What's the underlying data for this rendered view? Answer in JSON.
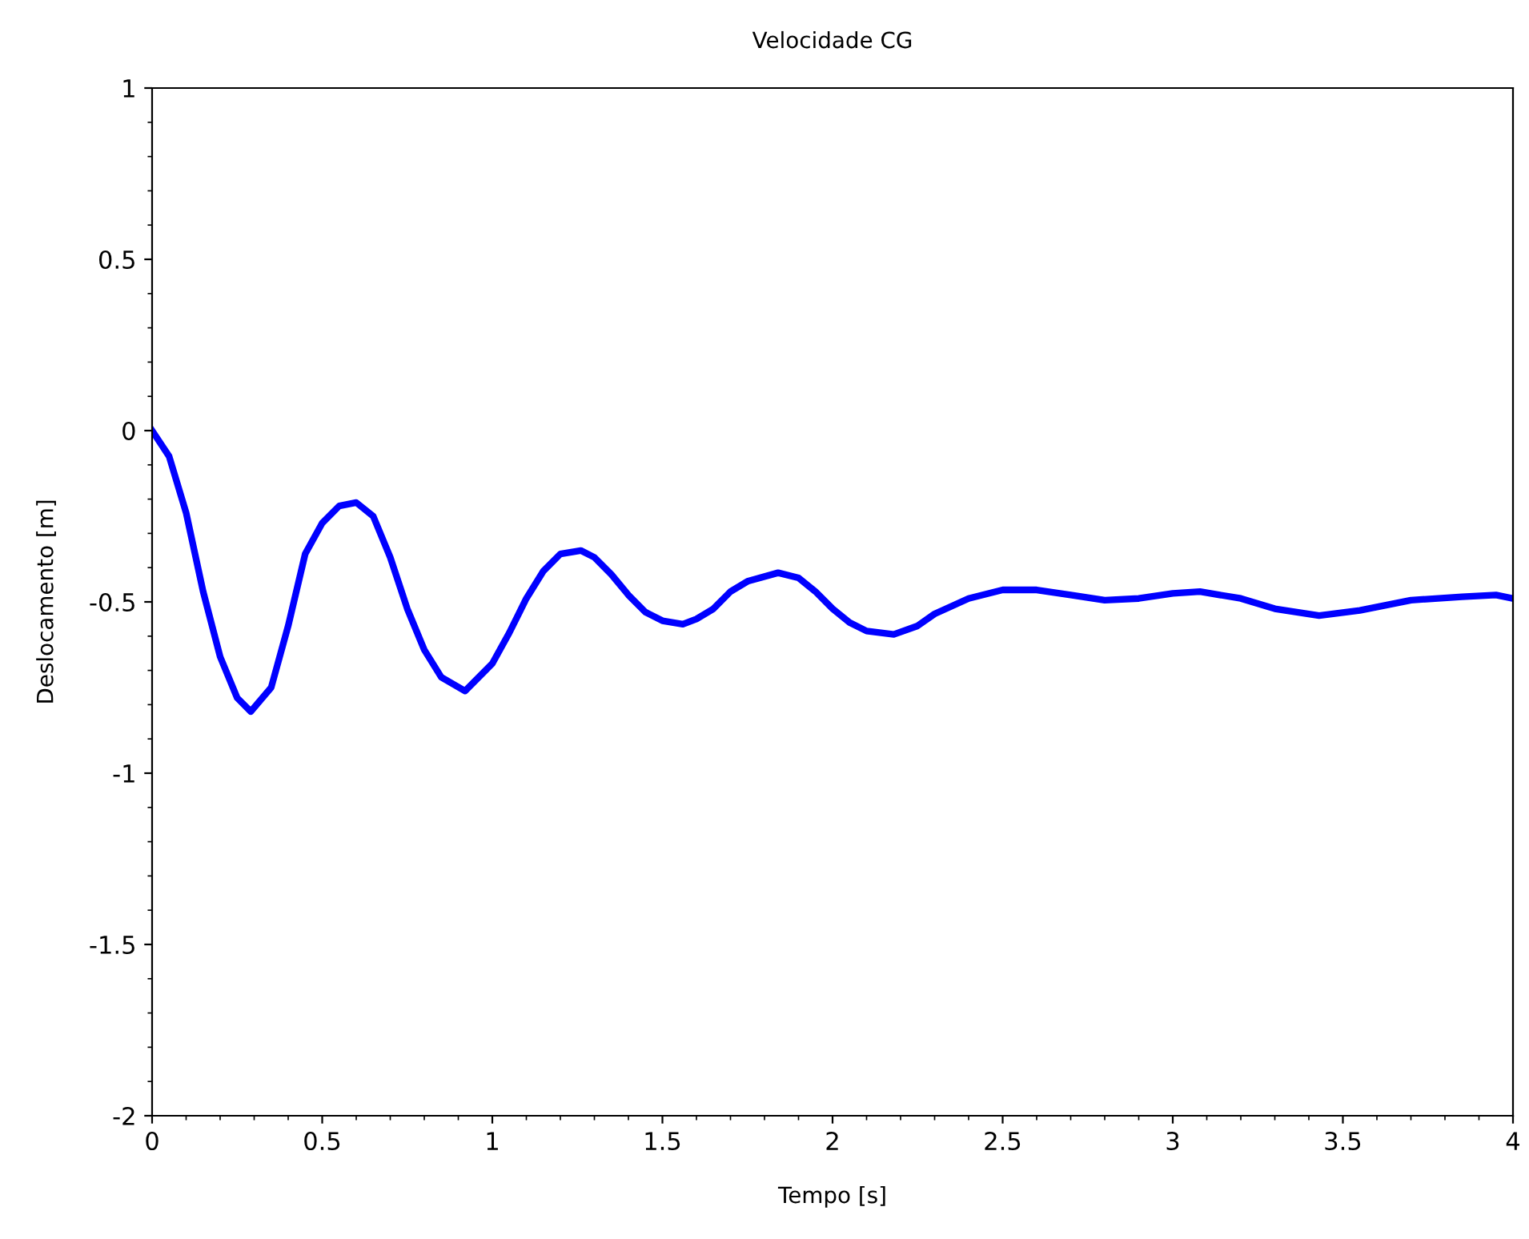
{
  "chart_data": {
    "type": "line",
    "title": "Velocidade CG",
    "xlabel": "Tempo [s]",
    "ylabel": "Deslocamento [m]",
    "xlim": [
      0,
      4
    ],
    "ylim": [
      -2,
      1
    ],
    "xticks": [
      0,
      0.5,
      1,
      1.5,
      2,
      2.5,
      3,
      3.5,
      4
    ],
    "yticks": [
      -2,
      -1.5,
      -1,
      -0.5,
      0,
      0.5,
      1
    ],
    "grid": false,
    "legend": false,
    "marker": "none",
    "line_style": "solid",
    "series": [
      {
        "color": "#0000ff",
        "x": [
          0,
          0.05,
          0.1,
          0.15,
          0.2,
          0.25,
          0.29,
          0.35,
          0.4,
          0.45,
          0.5,
          0.55,
          0.6,
          0.65,
          0.7,
          0.75,
          0.8,
          0.85,
          0.92,
          1.0,
          1.05,
          1.1,
          1.15,
          1.2,
          1.26,
          1.3,
          1.35,
          1.4,
          1.45,
          1.5,
          1.56,
          1.6,
          1.65,
          1.7,
          1.75,
          1.84,
          1.9,
          1.95,
          2.0,
          2.05,
          2.1,
          2.18,
          2.25,
          2.3,
          2.4,
          2.5,
          2.6,
          2.7,
          2.8,
          2.9,
          3.0,
          3.08,
          3.2,
          3.3,
          3.43,
          3.55,
          3.7,
          3.85,
          3.95,
          4.0
        ],
        "values": [
          0,
          -0.075,
          -0.24,
          -0.47,
          -0.66,
          -0.78,
          -0.82,
          -0.75,
          -0.57,
          -0.36,
          -0.27,
          -0.22,
          -0.21,
          -0.25,
          -0.37,
          -0.52,
          -0.64,
          -0.72,
          -0.76,
          -0.68,
          -0.59,
          -0.49,
          -0.41,
          -0.36,
          -0.35,
          -0.37,
          -0.42,
          -0.48,
          -0.53,
          -0.555,
          -0.565,
          -0.55,
          -0.52,
          -0.47,
          -0.44,
          -0.415,
          -0.43,
          -0.47,
          -0.52,
          -0.56,
          -0.585,
          -0.595,
          -0.57,
          -0.535,
          -0.49,
          -0.465,
          -0.465,
          -0.48,
          -0.495,
          -0.49,
          -0.475,
          -0.47,
          -0.49,
          -0.52,
          -0.54,
          -0.525,
          -0.495,
          -0.485,
          -0.48,
          -0.49
        ]
      }
    ]
  }
}
